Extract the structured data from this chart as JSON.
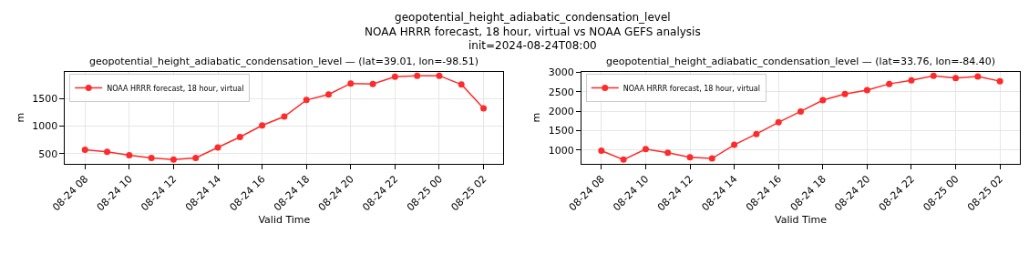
{
  "chart_data": [
    {
      "type": "line",
      "title": "geopotential_height_adiabatic_condensation_level — (lat=39.01, lon=-98.51)",
      "annotations": [
        "geopotential_height_adiabatic_condensation_level\nNOAA HRRR forecast, 18 hour, virtual vs NOAA GEFS analysis\ninit=2024-08-24T08:00"
      ],
      "xlabel": "Valid Time",
      "ylabel": "m",
      "x": [
        "2024-08-24T08:00",
        "2024-08-24T09:00",
        "2024-08-24T10:00",
        "2024-08-24T11:00",
        "2024-08-24T12:00",
        "2024-08-24T13:00",
        "2024-08-24T14:00",
        "2024-08-24T15:00",
        "2024-08-24T16:00",
        "2024-08-24T17:00",
        "2024-08-24T18:00",
        "2024-08-24T19:00",
        "2024-08-24T20:00",
        "2024-08-24T21:00",
        "2024-08-24T22:00",
        "2024-08-24T23:00",
        "2024-08-25T00:00",
        "2024-08-25T01:00",
        "2024-08-25T02:00"
      ],
      "series": [
        {
          "name": "NOAA HRRR forecast, 18 hour, virtual",
          "color": "#ff2a2a",
          "values": [
            570,
            530,
            470,
            420,
            390,
            420,
            610,
            800,
            1010,
            1170,
            1470,
            1570,
            1770,
            1760,
            1890,
            1910,
            1910,
            1750,
            1320
          ]
        }
      ],
      "xlim": [
        "2024-08-24T07:06",
        "2024-08-25T02:54"
      ],
      "xticks": [
        {
          "value": "2024-08-24T08:00",
          "label": "08-24 08"
        },
        {
          "value": "2024-08-24T10:00",
          "label": "08-24 10"
        },
        {
          "value": "2024-08-24T12:00",
          "label": "08-24 12"
        },
        {
          "value": "2024-08-24T14:00",
          "label": "08-24 14"
        },
        {
          "value": "2024-08-24T16:00",
          "label": "08-24 16"
        },
        {
          "value": "2024-08-24T18:00",
          "label": "08-24 18"
        },
        {
          "value": "2024-08-24T20:00",
          "label": "08-24 20"
        },
        {
          "value": "2024-08-24T22:00",
          "label": "08-24 22"
        },
        {
          "value": "2024-08-25T00:00",
          "label": "08-25 00"
        },
        {
          "value": "2024-08-25T02:00",
          "label": "08-25 02"
        }
      ],
      "ylim": [
        320,
        1980
      ],
      "yticks": [
        500,
        1000,
        1500
      ],
      "grid": true,
      "legend": "top left",
      "marker": "circle",
      "line_style": "solid"
    },
    {
      "type": "line",
      "title": "geopotential_height_adiabatic_condensation_level — (lat=33.76, lon=-84.40)",
      "xlabel": "Valid Time",
      "ylabel": "m",
      "x": [
        "2024-08-24T08:00",
        "2024-08-24T09:00",
        "2024-08-24T10:00",
        "2024-08-24T11:00",
        "2024-08-24T12:00",
        "2024-08-24T13:00",
        "2024-08-24T14:00",
        "2024-08-24T15:00",
        "2024-08-24T16:00",
        "2024-08-24T17:00",
        "2024-08-24T18:00",
        "2024-08-24T19:00",
        "2024-08-24T20:00",
        "2024-08-24T21:00",
        "2024-08-24T22:00",
        "2024-08-24T23:00",
        "2024-08-25T00:00",
        "2024-08-25T01:00",
        "2024-08-25T02:00"
      ],
      "series": [
        {
          "name": "NOAA HRRR forecast, 18 hour, virtual",
          "color": "#ff2a2a",
          "values": [
            980,
            750,
            1020,
            930,
            810,
            780,
            1130,
            1410,
            1710,
            1990,
            2280,
            2440,
            2540,
            2700,
            2790,
            2910,
            2850,
            2890,
            2770
          ]
        }
      ],
      "xlim": [
        "2024-08-24T07:06",
        "2024-08-25T02:54"
      ],
      "xticks": [
        {
          "value": "2024-08-24T08:00",
          "label": "08-24 08"
        },
        {
          "value": "2024-08-24T10:00",
          "label": "08-24 10"
        },
        {
          "value": "2024-08-24T12:00",
          "label": "08-24 12"
        },
        {
          "value": "2024-08-24T14:00",
          "label": "08-24 14"
        },
        {
          "value": "2024-08-24T16:00",
          "label": "08-24 16"
        },
        {
          "value": "2024-08-24T18:00",
          "label": "08-24 18"
        },
        {
          "value": "2024-08-24T20:00",
          "label": "08-24 20"
        },
        {
          "value": "2024-08-24T22:00",
          "label": "08-24 22"
        },
        {
          "value": "2024-08-25T00:00",
          "label": "08-25 00"
        },
        {
          "value": "2024-08-25T02:00",
          "label": "08-25 02"
        }
      ],
      "ylim": [
        650,
        3010
      ],
      "yticks": [
        1000,
        1500,
        2000,
        2500,
        3000
      ],
      "grid": true,
      "legend": "top left",
      "marker": "circle",
      "line_style": "solid"
    }
  ]
}
